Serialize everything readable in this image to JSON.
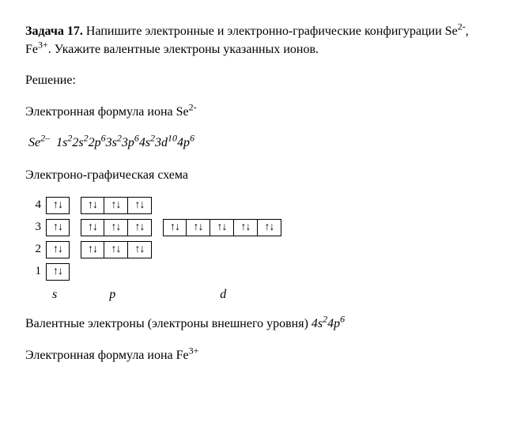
{
  "task": {
    "label": "Задача 17.",
    "text_part1": " Напишите электронные и электронно-графические конфигурации Se",
    "sup1": "2-",
    "text_sep": ", Fe",
    "sup2": "3+",
    "text_part2": ". Укажите валентные электроны указанных ионов."
  },
  "solution_label": "Решение:",
  "se": {
    "intro_a": "Электронная формула иона Se",
    "intro_sup": "2-",
    "formula_prefix": "Se",
    "formula_charge": "2–",
    "formula_space": "  ",
    "cfg": "1s²2s²2p⁶3s²3p⁶4s²3d¹⁰4p⁶",
    "f1": "1s",
    "e1": "2",
    "f2": "2s",
    "e2": "2",
    "f3": "2p",
    "e3": "6",
    "f4": "3s",
    "e4": "2",
    "f5": "3p",
    "e5": "6",
    "f6": "4s",
    "e6": "2",
    "f7": "3d",
    "e7": "10",
    "f8": "4p",
    "e8": "6"
  },
  "diagram_label": "Электроно-графическая схема",
  "rows": {
    "r4": "4",
    "r3": "3",
    "r2": "2",
    "r1": "1"
  },
  "orbital_fill": "↑↓",
  "sublevels": {
    "s": "s",
    "p": "p",
    "d": "d"
  },
  "valence": {
    "text": "Валентные электроны (электроны внешнего уровня)  ",
    "f1": "4s",
    "e1": "2",
    "f2": "4p",
    "e2": "6"
  },
  "fe": {
    "intro_a": "Электронная формула иона Fe",
    "intro_sup": "3+"
  }
}
